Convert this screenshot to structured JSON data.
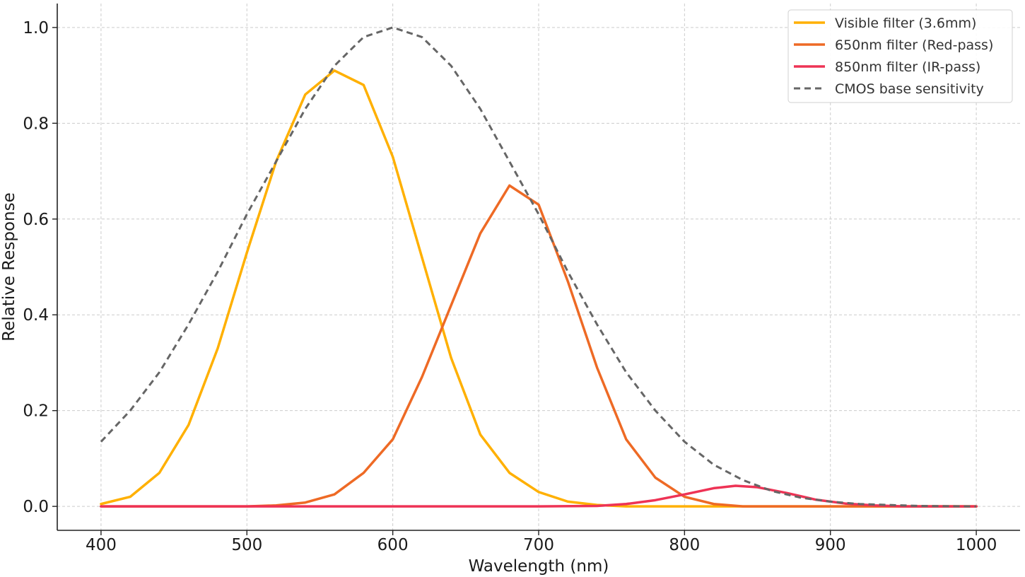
{
  "chart_data": {
    "type": "line",
    "title": "",
    "xlabel": "Wavelength (nm)",
    "ylabel": "Relative Response",
    "xlim": [
      370,
      1030
    ],
    "ylim": [
      -0.05,
      1.05
    ],
    "xticks": [
      400,
      500,
      600,
      700,
      800,
      900,
      1000
    ],
    "yticks": [
      0.0,
      0.2,
      0.4,
      0.6,
      0.8,
      1.0
    ],
    "xtick_labels": [
      "400",
      "500",
      "600",
      "700",
      "800",
      "900",
      "1000"
    ],
    "ytick_labels": [
      "0.0",
      "0.2",
      "0.4",
      "0.6",
      "0.8",
      "1.0"
    ],
    "grid": true,
    "legend_position": "top-right",
    "series": [
      {
        "name": "Visible filter (3.6mm)",
        "color": "#FFB000",
        "style": "solid",
        "points": [
          [
            400,
            0.005
          ],
          [
            420,
            0.02
          ],
          [
            440,
            0.07
          ],
          [
            460,
            0.17
          ],
          [
            480,
            0.33
          ],
          [
            500,
            0.53
          ],
          [
            520,
            0.72
          ],
          [
            540,
            0.86
          ],
          [
            560,
            0.91
          ],
          [
            580,
            0.88
          ],
          [
            600,
            0.73
          ],
          [
            620,
            0.52
          ],
          [
            640,
            0.31
          ],
          [
            660,
            0.15
          ],
          [
            680,
            0.07
          ],
          [
            700,
            0.03
          ],
          [
            720,
            0.01
          ],
          [
            740,
            0.003
          ],
          [
            760,
            0.0
          ],
          [
            800,
            0.0
          ],
          [
            900,
            0.0
          ],
          [
            1000,
            0.0
          ]
        ]
      },
      {
        "name": "650nm filter (Red-pass)",
        "color": "#EE6A25",
        "style": "solid",
        "points": [
          [
            400,
            0.0
          ],
          [
            500,
            0.0
          ],
          [
            520,
            0.002
          ],
          [
            540,
            0.008
          ],
          [
            560,
            0.025
          ],
          [
            580,
            0.07
          ],
          [
            600,
            0.14
          ],
          [
            620,
            0.27
          ],
          [
            640,
            0.42
          ],
          [
            660,
            0.57
          ],
          [
            680,
            0.67
          ],
          [
            700,
            0.63
          ],
          [
            720,
            0.47
          ],
          [
            740,
            0.29
          ],
          [
            760,
            0.14
          ],
          [
            780,
            0.06
          ],
          [
            800,
            0.02
          ],
          [
            820,
            0.005
          ],
          [
            840,
            0.0
          ],
          [
            900,
            0.0
          ],
          [
            1000,
            0.0
          ]
        ]
      },
      {
        "name": "850nm filter (IR-pass)",
        "color": "#EE3355",
        "style": "solid",
        "points": [
          [
            400,
            0.0
          ],
          [
            700,
            0.0
          ],
          [
            740,
            0.001
          ],
          [
            760,
            0.005
          ],
          [
            780,
            0.013
          ],
          [
            800,
            0.025
          ],
          [
            820,
            0.038
          ],
          [
            835,
            0.043
          ],
          [
            850,
            0.04
          ],
          [
            870,
            0.028
          ],
          [
            890,
            0.014
          ],
          [
            910,
            0.006
          ],
          [
            930,
            0.002
          ],
          [
            950,
            0.0
          ],
          [
            1000,
            0.0
          ]
        ]
      },
      {
        "name": "CMOS base sensitivity",
        "color": "#666666",
        "style": "dashed",
        "points": [
          [
            400,
            0.135
          ],
          [
            420,
            0.2
          ],
          [
            440,
            0.28
          ],
          [
            460,
            0.38
          ],
          [
            480,
            0.49
          ],
          [
            500,
            0.61
          ],
          [
            520,
            0.72
          ],
          [
            540,
            0.83
          ],
          [
            560,
            0.92
          ],
          [
            580,
            0.98
          ],
          [
            600,
            1.0
          ],
          [
            620,
            0.98
          ],
          [
            640,
            0.92
          ],
          [
            660,
            0.83
          ],
          [
            680,
            0.72
          ],
          [
            700,
            0.61
          ],
          [
            720,
            0.49
          ],
          [
            740,
            0.38
          ],
          [
            760,
            0.28
          ],
          [
            780,
            0.2
          ],
          [
            800,
            0.135
          ],
          [
            820,
            0.087
          ],
          [
            840,
            0.055
          ],
          [
            860,
            0.032
          ],
          [
            880,
            0.018
          ],
          [
            900,
            0.01
          ],
          [
            920,
            0.005
          ],
          [
            940,
            0.003
          ],
          [
            960,
            0.001
          ],
          [
            1000,
            0.0
          ]
        ]
      }
    ]
  }
}
